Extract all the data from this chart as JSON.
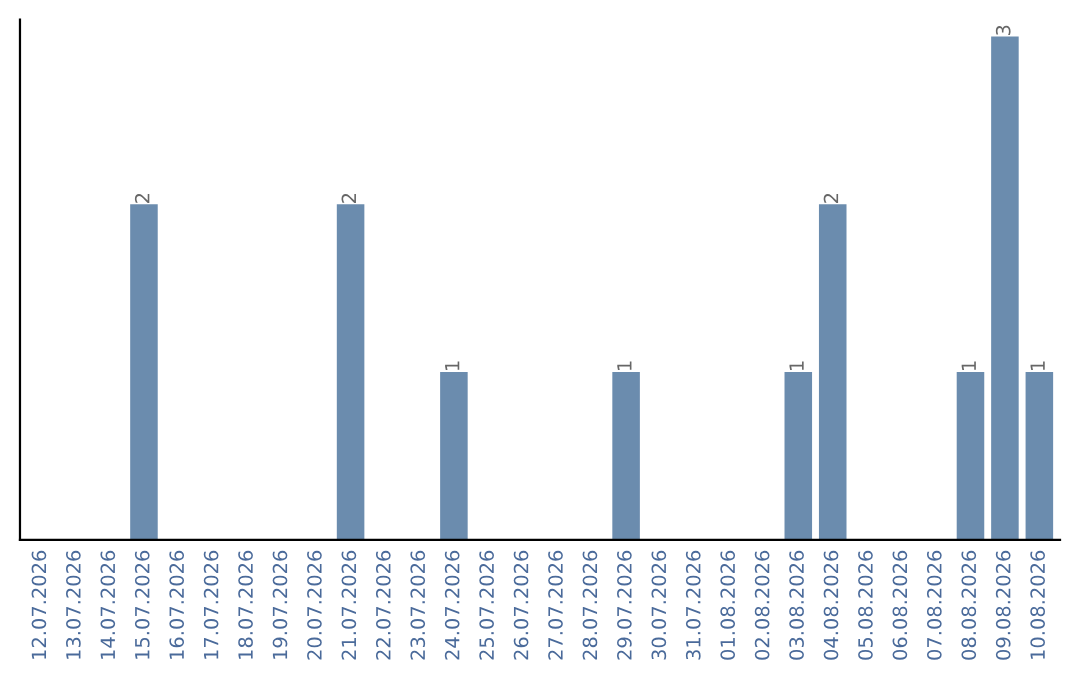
{
  "chart_data": {
    "type": "bar",
    "categories": [
      "12.07.2026",
      "13.07.2026",
      "14.07.2026",
      "15.07.2026",
      "16.07.2026",
      "17.07.2026",
      "18.07.2026",
      "19.07.2026",
      "20.07.2026",
      "21.07.2026",
      "22.07.2026",
      "23.07.2026",
      "24.07.2026",
      "25.07.2026",
      "26.07.2026",
      "27.07.2026",
      "28.07.2026",
      "29.07.2026",
      "30.07.2026",
      "31.07.2026",
      "01.08.2026",
      "02.08.2026",
      "03.08.2026",
      "04.08.2026",
      "05.08.2026",
      "06.08.2026",
      "07.08.2026",
      "08.08.2026",
      "09.08.2026",
      "10.08.2026"
    ],
    "values": [
      0,
      0,
      0,
      2,
      0,
      0,
      0,
      0,
      0,
      2,
      0,
      0,
      1,
      0,
      0,
      0,
      0,
      1,
      0,
      0,
      0,
      0,
      1,
      2,
      0,
      0,
      0,
      1,
      3,
      1
    ],
    "value_labels": [
      null,
      null,
      null,
      "2",
      null,
      null,
      null,
      null,
      null,
      "2",
      null,
      null,
      "1",
      null,
      null,
      null,
      null,
      "1",
      null,
      null,
      null,
      null,
      "1",
      "2",
      null,
      null,
      null,
      "1",
      "3",
      "1"
    ],
    "color": "#6b8cae",
    "ylim": [
      0,
      3.1
    ],
    "tick_labels": "x",
    "grid": false
  }
}
